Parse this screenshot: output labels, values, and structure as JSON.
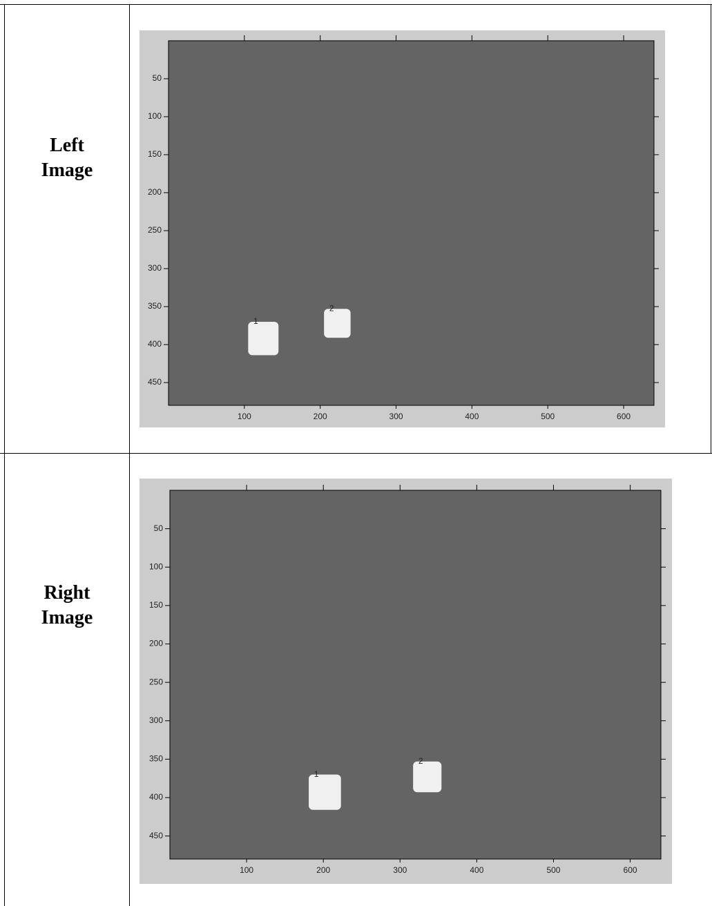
{
  "table": {
    "rows": [
      {
        "label": "Left Image",
        "plot": {
          "xlim": [
            0,
            640
          ],
          "ylim": [
            0,
            480
          ],
          "xticks": [
            100,
            200,
            300,
            400,
            500,
            600
          ],
          "yticks": [
            50,
            100,
            150,
            200,
            250,
            300,
            350,
            400,
            450
          ],
          "regions": [
            {
              "label": "1",
              "x": [
                105,
                145
              ],
              "y": [
                370,
                414
              ]
            },
            {
              "label": "2",
              "x": [
                205,
                240
              ],
              "y": [
                353,
                391
              ]
            }
          ]
        }
      },
      {
        "label": "Right Image",
        "plot": {
          "xlim": [
            0,
            640
          ],
          "ylim": [
            0,
            480
          ],
          "xticks": [
            100,
            200,
            300,
            400,
            500,
            600
          ],
          "yticks": [
            50,
            100,
            150,
            200,
            250,
            300,
            350,
            400,
            450
          ],
          "regions": [
            {
              "label": "1",
              "x": [
                181,
                223
              ],
              "y": [
                370,
                416
              ]
            },
            {
              "label": "2",
              "x": [
                317,
                354
              ],
              "y": [
                353,
                393
              ]
            }
          ]
        }
      }
    ]
  }
}
